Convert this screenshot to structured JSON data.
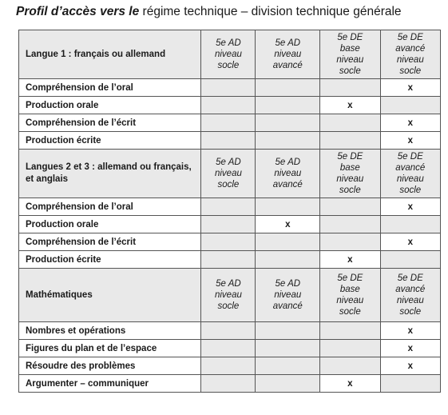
{
  "title": {
    "lead": "Profil d’accès vers le",
    "rest": " régime technique – division technique générale"
  },
  "columns": [
    {
      "lines": [
        "5e AD",
        "niveau",
        "socle"
      ]
    },
    {
      "lines": [
        "5e AD",
        "niveau",
        "avancé"
      ]
    },
    {
      "lines": [
        "5e DE",
        "base",
        "niveau",
        "socle"
      ]
    },
    {
      "lines": [
        "5e DE",
        "avancé",
        "niveau",
        "socle"
      ]
    }
  ],
  "sections": [
    {
      "header": "Langue 1 : français ou allemand",
      "rows": [
        {
          "label": "Compréhension de l’oral",
          "marks": [
            "",
            "",
            "",
            "x"
          ]
        },
        {
          "label": "Production orale",
          "marks": [
            "",
            "",
            "x",
            ""
          ]
        },
        {
          "label": "Compréhension de l’écrit",
          "marks": [
            "",
            "",
            "",
            "x"
          ]
        },
        {
          "label": "Production écrite",
          "marks": [
            "",
            "",
            "",
            "x"
          ]
        }
      ]
    },
    {
      "header": "Langues 2 et 3 : allemand ou français, et anglais",
      "rows": [
        {
          "label": "Compréhension de l’oral",
          "marks": [
            "",
            "",
            "",
            "x"
          ]
        },
        {
          "label": "Production orale",
          "marks": [
            "",
            "x",
            "",
            ""
          ]
        },
        {
          "label": "Compréhension de l’écrit",
          "marks": [
            "",
            "",
            "",
            "x"
          ]
        },
        {
          "label": "Production écrite",
          "marks": [
            "",
            "",
            "x",
            ""
          ]
        }
      ]
    },
    {
      "header": "Mathématiques",
      "rows": [
        {
          "label": "Nombres et opérations",
          "marks": [
            "",
            "",
            "",
            "x"
          ]
        },
        {
          "label": "Figures du plan et de l’espace",
          "marks": [
            "",
            "",
            "",
            "x"
          ]
        },
        {
          "label": "Résoudre des problèmes",
          "marks": [
            "",
            "",
            "",
            "x"
          ]
        },
        {
          "label": "Argumenter – communiquer",
          "marks": [
            "",
            "",
            "x",
            ""
          ]
        }
      ]
    }
  ]
}
